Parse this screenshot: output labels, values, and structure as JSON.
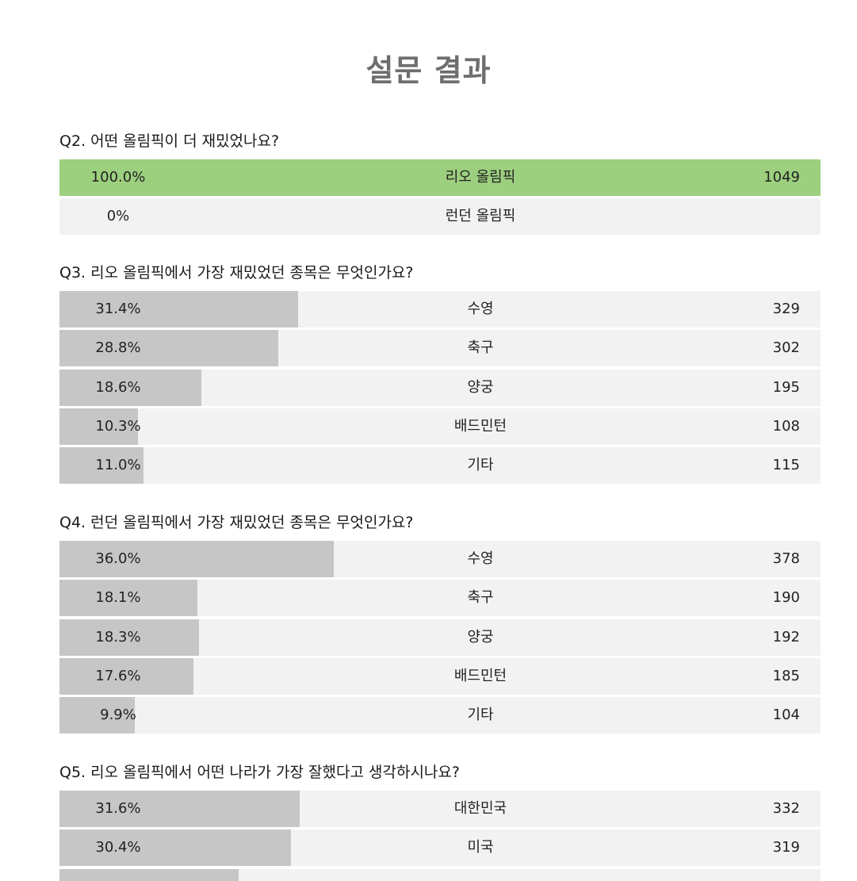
{
  "page_title": "설문 결과",
  "questions": [
    {
      "title": "Q2. 어떤 올림픽이 더 재밌었나요?",
      "options": [
        {
          "percent_label": "100.0%",
          "fraction": 1.0,
          "label": "리오 올림픽",
          "count": "1049",
          "winner": true
        },
        {
          "percent_label": "0%",
          "fraction": 0.0,
          "label": "런던 올림픽",
          "count": "",
          "winner": false
        }
      ]
    },
    {
      "title": "Q3. 리오 올림픽에서 가장 재밌었던 종목은 무엇인가요?",
      "options": [
        {
          "percent_label": "31.4%",
          "fraction": 0.314,
          "label": "수영",
          "count": "329",
          "winner": false
        },
        {
          "percent_label": "28.8%",
          "fraction": 0.288,
          "label": "축구",
          "count": "302",
          "winner": false
        },
        {
          "percent_label": "18.6%",
          "fraction": 0.186,
          "label": "양궁",
          "count": "195",
          "winner": false
        },
        {
          "percent_label": "10.3%",
          "fraction": 0.103,
          "label": "배드민턴",
          "count": "108",
          "winner": false
        },
        {
          "percent_label": "11.0%",
          "fraction": 0.11,
          "label": "기타",
          "count": "115",
          "winner": false
        }
      ]
    },
    {
      "title": "Q4. 런던 올림픽에서 가장 재밌었던 종목은 무엇인가요?",
      "options": [
        {
          "percent_label": "36.0%",
          "fraction": 0.36,
          "label": "수영",
          "count": "378",
          "winner": false
        },
        {
          "percent_label": "18.1%",
          "fraction": 0.181,
          "label": "축구",
          "count": "190",
          "winner": false
        },
        {
          "percent_label": "18.3%",
          "fraction": 0.183,
          "label": "양궁",
          "count": "192",
          "winner": false
        },
        {
          "percent_label": "17.6%",
          "fraction": 0.176,
          "label": "배드민턴",
          "count": "185",
          "winner": false
        },
        {
          "percent_label": "9.9%",
          "fraction": 0.099,
          "label": "기타",
          "count": "104",
          "winner": false
        }
      ]
    },
    {
      "title": "Q5. 리오 올림픽에서 어떤 나라가 가장 잘했다고 생각하시나요?",
      "options": [
        {
          "percent_label": "31.6%",
          "fraction": 0.316,
          "label": "대한민국",
          "count": "332",
          "winner": false
        },
        {
          "percent_label": "30.4%",
          "fraction": 0.304,
          "label": "미국",
          "count": "319",
          "winner": false
        },
        {
          "percent_label": "",
          "fraction": 0.235,
          "label": "",
          "count": "",
          "winner": false
        }
      ]
    }
  ],
  "colors": {
    "winner_bar": "#9ccf7e",
    "bar": "#c6c6c6",
    "row_background": "#f2f2f2",
    "title": "#6e6e6e"
  }
}
